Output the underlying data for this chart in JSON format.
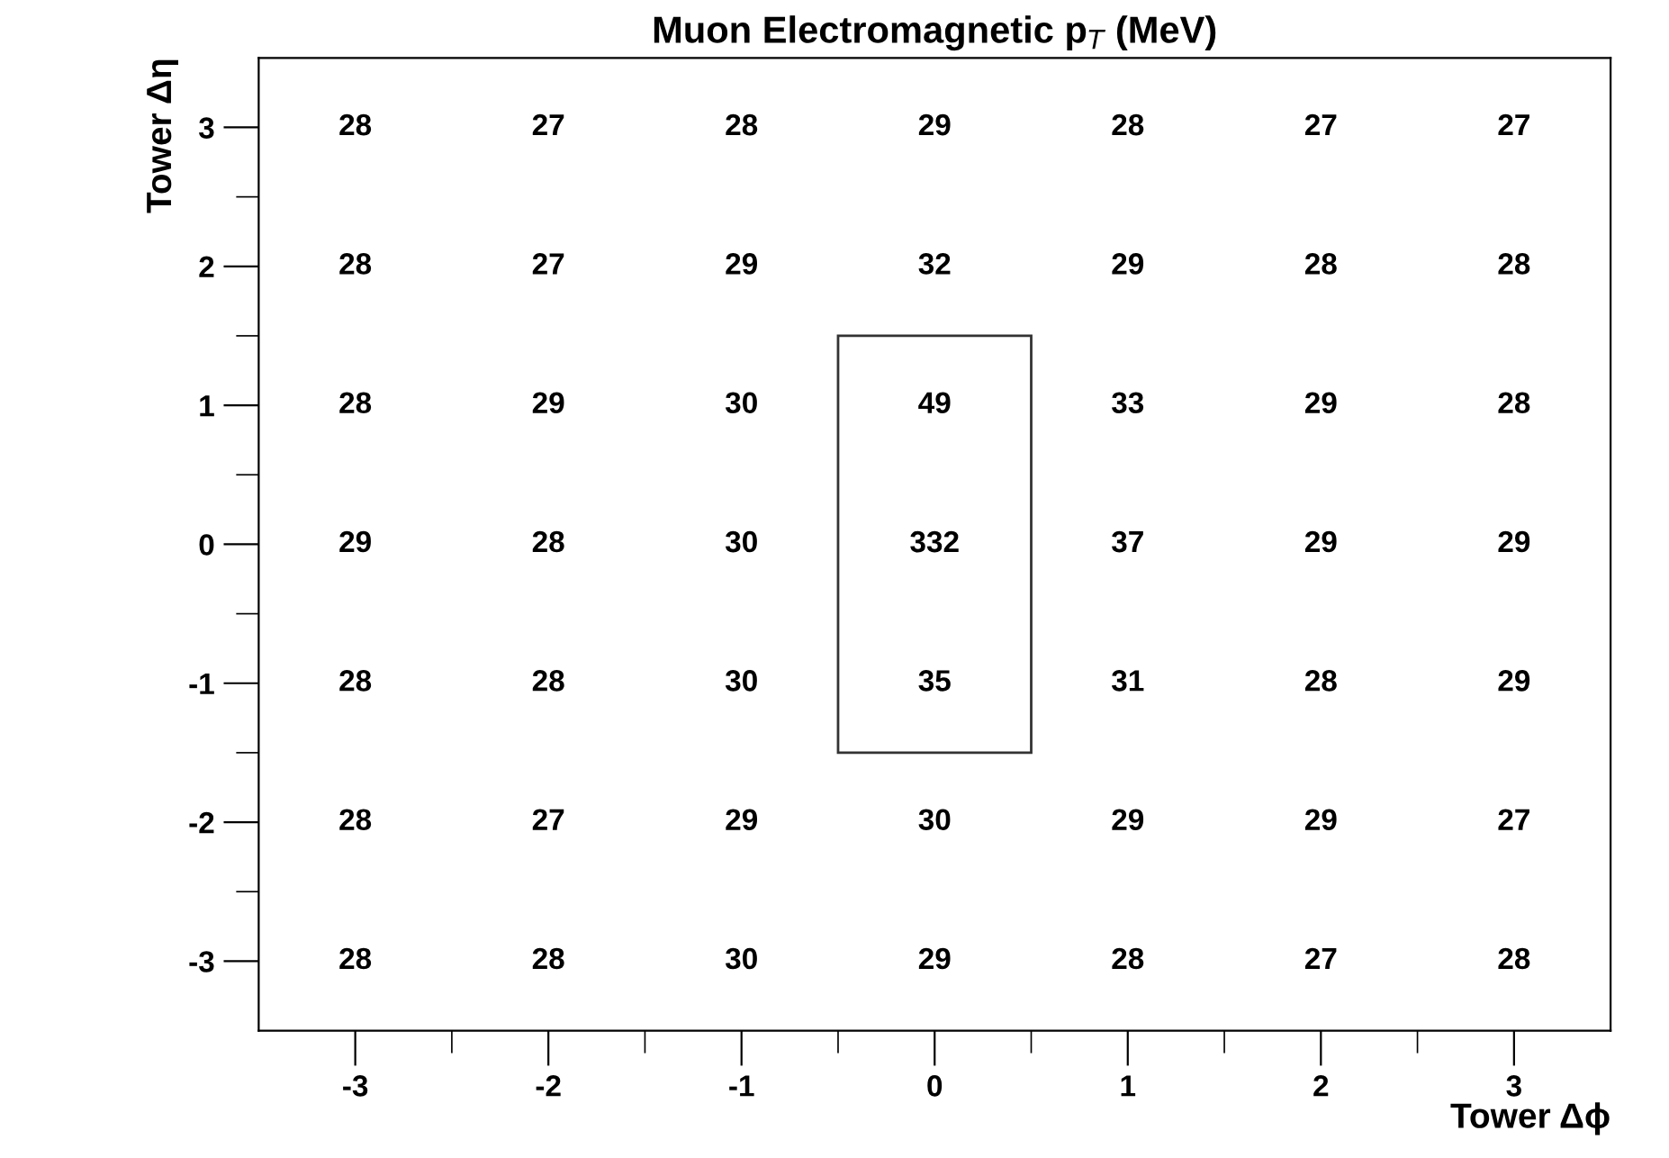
{
  "chart_data": {
    "type": "heatmap",
    "title": "Muon Electromagnetic p$_{T}$ (MeV)",
    "xlabel": "Tower Δϕ",
    "ylabel": "Tower Δη",
    "categories": [
      "-3",
      "-2",
      "-1",
      "0",
      "1",
      "2",
      "3"
    ],
    "y_categories": [
      "3",
      "2",
      "1",
      "0",
      "-1",
      "-2",
      "-3"
    ],
    "cells": [
      [
        28,
        27,
        28,
        29,
        28,
        27,
        27
      ],
      [
        28,
        27,
        29,
        32,
        29,
        28,
        28
      ],
      [
        28,
        29,
        30,
        49,
        33,
        29,
        28
      ],
      [
        29,
        28,
        30,
        332,
        37,
        29,
        29
      ],
      [
        28,
        28,
        30,
        35,
        31,
        28,
        29
      ],
      [
        28,
        27,
        29,
        30,
        29,
        29,
        27
      ],
      [
        28,
        28,
        30,
        29,
        28,
        27,
        28
      ]
    ],
    "data_labels": true,
    "grid": false
  }
}
